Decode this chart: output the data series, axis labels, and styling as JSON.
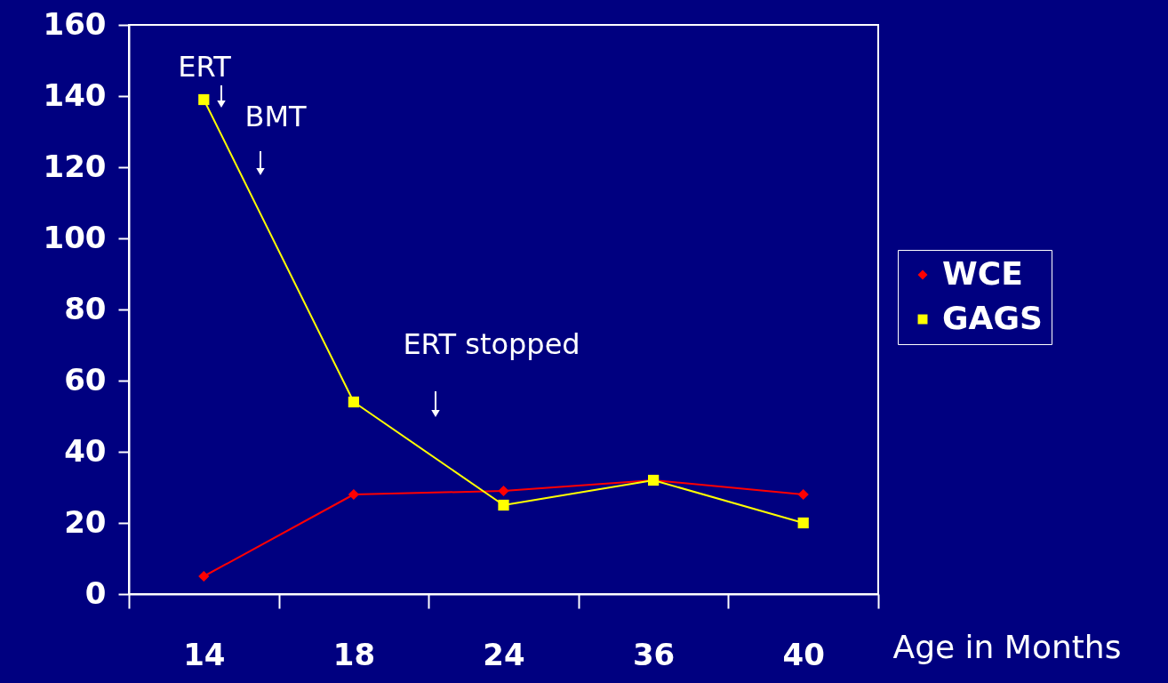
{
  "chart_data": {
    "type": "line",
    "xlabel": "Age in Months",
    "categories": [
      "14",
      "18",
      "24",
      "36",
      "40"
    ],
    "series": [
      {
        "name": "WCE",
        "color": "#ff0000",
        "marker": "diamond",
        "values": [
          5,
          28,
          29,
          32,
          28
        ]
      },
      {
        "name": "GAGS",
        "color": "#ffff00",
        "marker": "square",
        "values": [
          139,
          54,
          25,
          32,
          20
        ]
      }
    ],
    "ylim": [
      0,
      160
    ],
    "yticks": [
      0,
      20,
      40,
      60,
      80,
      100,
      120,
      140,
      160
    ],
    "annotations": [
      "ERT",
      "BMT",
      "ERT stopped"
    ],
    "legend": "right",
    "grid": false
  }
}
